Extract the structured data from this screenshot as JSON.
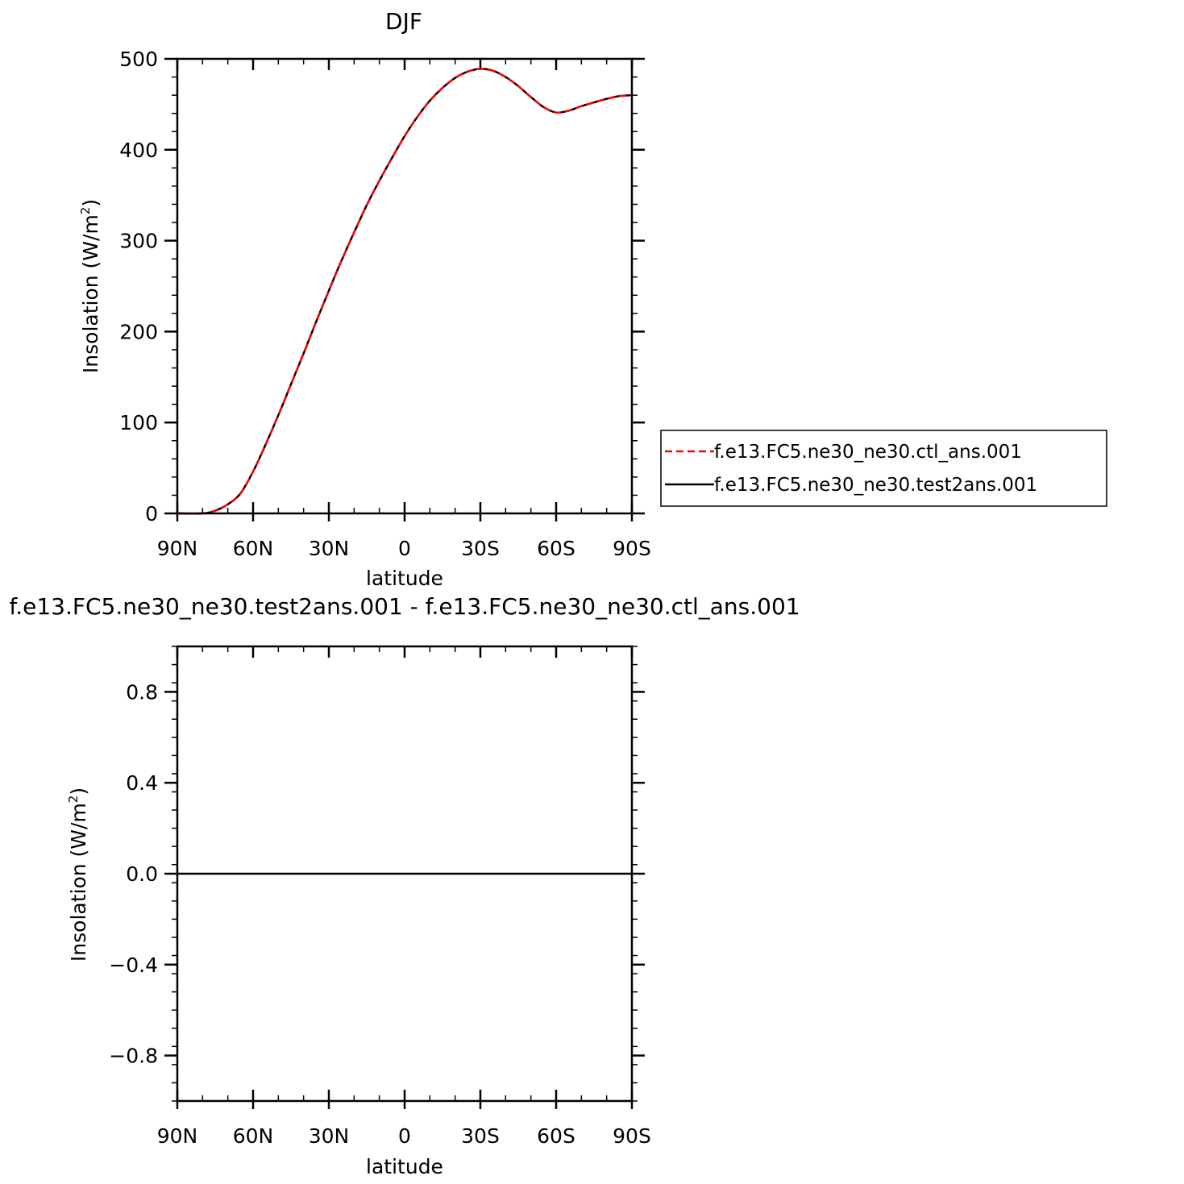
{
  "chart_data": [
    {
      "type": "line",
      "title": "DJF",
      "xlabel": "latitude",
      "ylabel": "Insolation (W/m",
      "ylabel_superscript": "2",
      "ylabel_close": ")",
      "xlim": [
        90,
        -90
      ],
      "ylim": [
        0,
        500
      ],
      "x_ticks": [
        {
          "value": 90,
          "label": "90N"
        },
        {
          "value": 60,
          "label": "60N"
        },
        {
          "value": 30,
          "label": "30N"
        },
        {
          "value": 0,
          "label": "0"
        },
        {
          "value": -30,
          "label": "30S"
        },
        {
          "value": -60,
          "label": "60S"
        },
        {
          "value": -90,
          "label": "90S"
        }
      ],
      "y_ticks": [
        {
          "value": 0,
          "label": "0"
        },
        {
          "value": 100,
          "label": "100"
        },
        {
          "value": 200,
          "label": "200"
        },
        {
          "value": 300,
          "label": "300"
        },
        {
          "value": 400,
          "label": "400"
        },
        {
          "value": 500,
          "label": "500"
        }
      ],
      "y_minor_step": 20,
      "x_minor_step": 10,
      "grid": false,
      "legend_position": "right",
      "x": [
        90,
        80,
        75,
        70,
        65,
        60,
        55,
        50,
        45,
        40,
        35,
        30,
        25,
        20,
        15,
        10,
        5,
        0,
        -5,
        -10,
        -15,
        -20,
        -25,
        -30,
        -35,
        -40,
        -45,
        -50,
        -55,
        -60,
        -65,
        -70,
        -75,
        -80,
        -85,
        -90
      ],
      "series": [
        {
          "name": "f.e13.FC5.ne30_ne30.ctl_ans.001",
          "color": "#ff0000",
          "dash": "dashed",
          "values": [
            0,
            0,
            3,
            10,
            22,
            46,
            76,
            108,
            142,
            176,
            211,
            245,
            278,
            309,
            339,
            366,
            391,
            415,
            436,
            454,
            468,
            479,
            486,
            489,
            487,
            480,
            470,
            458,
            447,
            441,
            443,
            448,
            452,
            456,
            459,
            460
          ]
        },
        {
          "name": "f.e13.FC5.ne30_ne30.test2ans.001",
          "color": "#000000",
          "dash": "solid",
          "values": [
            0,
            0,
            3,
            10,
            22,
            46,
            76,
            108,
            142,
            176,
            211,
            245,
            278,
            309,
            339,
            366,
            391,
            415,
            436,
            454,
            468,
            479,
            486,
            489,
            487,
            480,
            470,
            458,
            447,
            441,
            443,
            448,
            452,
            456,
            459,
            460
          ]
        }
      ]
    },
    {
      "type": "line",
      "title": "f.e13.FC5.ne30_ne30.test2ans.001 - f.e13.FC5.ne30_ne30.ctl_ans.001",
      "xlabel": "latitude",
      "ylabel": "Insolation (W/m",
      "ylabel_superscript": "2",
      "ylabel_close": ")",
      "xlim": [
        90,
        -90
      ],
      "ylim": [
        -1,
        1
      ],
      "x_ticks": [
        {
          "value": 90,
          "label": "90N"
        },
        {
          "value": 60,
          "label": "60N"
        },
        {
          "value": 30,
          "label": "30N"
        },
        {
          "value": 0,
          "label": "0"
        },
        {
          "value": -30,
          "label": "30S"
        },
        {
          "value": -60,
          "label": "60S"
        },
        {
          "value": -90,
          "label": "90S"
        }
      ],
      "y_ticks": [
        {
          "value": -0.8,
          "label": "−0.8"
        },
        {
          "value": -0.4,
          "label": "−0.4"
        },
        {
          "value": 0.0,
          "label": "0.0"
        },
        {
          "value": 0.4,
          "label": "0.4"
        },
        {
          "value": 0.8,
          "label": "0.8"
        }
      ],
      "y_minor_step": 0.08,
      "x_minor_step": 10,
      "grid": false,
      "x": [
        90,
        -90
      ],
      "series": [
        {
          "color": "#000000",
          "dash": "solid",
          "values": [
            0,
            0
          ]
        }
      ]
    }
  ]
}
